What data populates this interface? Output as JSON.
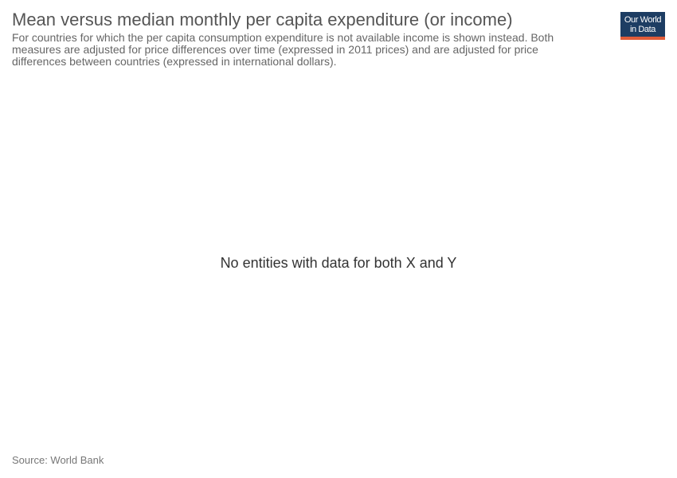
{
  "header": {
    "title": "Mean versus median monthly per capita expenditure (or income)",
    "subtitle": "For countries for which the per capita consumption expenditure is not available income is shown instead. Both measures are adjusted for price differences over time (expressed in 2011 prices) and are adjusted for price differences between countries (expressed in international dollars)."
  },
  "logo": {
    "line1": "Our World",
    "line2": "in Data",
    "colors": {
      "background": "#1d3d63",
      "accent": "#e15c39"
    }
  },
  "chart_data": {
    "type": "scatter",
    "title": "Mean versus median monthly per capita expenditure (or income)",
    "series": [],
    "message": "No entities with data for both X and Y"
  },
  "footer": {
    "source": "Source: World Bank"
  }
}
